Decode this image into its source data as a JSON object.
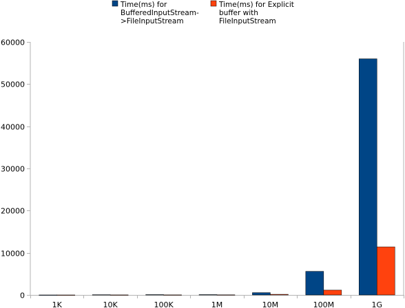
{
  "chart_data": {
    "type": "bar",
    "title": "",
    "xlabel": "",
    "ylabel": "",
    "categories": [
      "1K",
      "10K",
      "100K",
      "1M",
      "10M",
      "100M",
      "1G"
    ],
    "ylim": [
      0,
      60000
    ],
    "yticks": [
      0,
      10000,
      20000,
      30000,
      40000,
      50000,
      60000
    ],
    "ytick_labels": [
      "0",
      "10000",
      "20000",
      "30000",
      "40000",
      "50000",
      "60000"
    ],
    "grid": false,
    "legend_position": "top",
    "series": [
      {
        "name": "Time(ms) for BufferedInputStream->FileInputStream",
        "legend_lines": [
          "Time(ms) for",
          "BufferedInputStream-",
          ">FileInputStream"
        ],
        "color": "#004586",
        "values": [
          2,
          60,
          80,
          80,
          550,
          5600,
          56000
        ]
      },
      {
        "name": "Time(ms) for Explicit buffer with FileInputStream",
        "legend_lines": [
          "Time(ms) for Explicit",
          "buffer with",
          "FileInputStream"
        ],
        "color": "#ff420e",
        "values": [
          1,
          15,
          20,
          30,
          150,
          1150,
          11400
        ]
      }
    ]
  }
}
